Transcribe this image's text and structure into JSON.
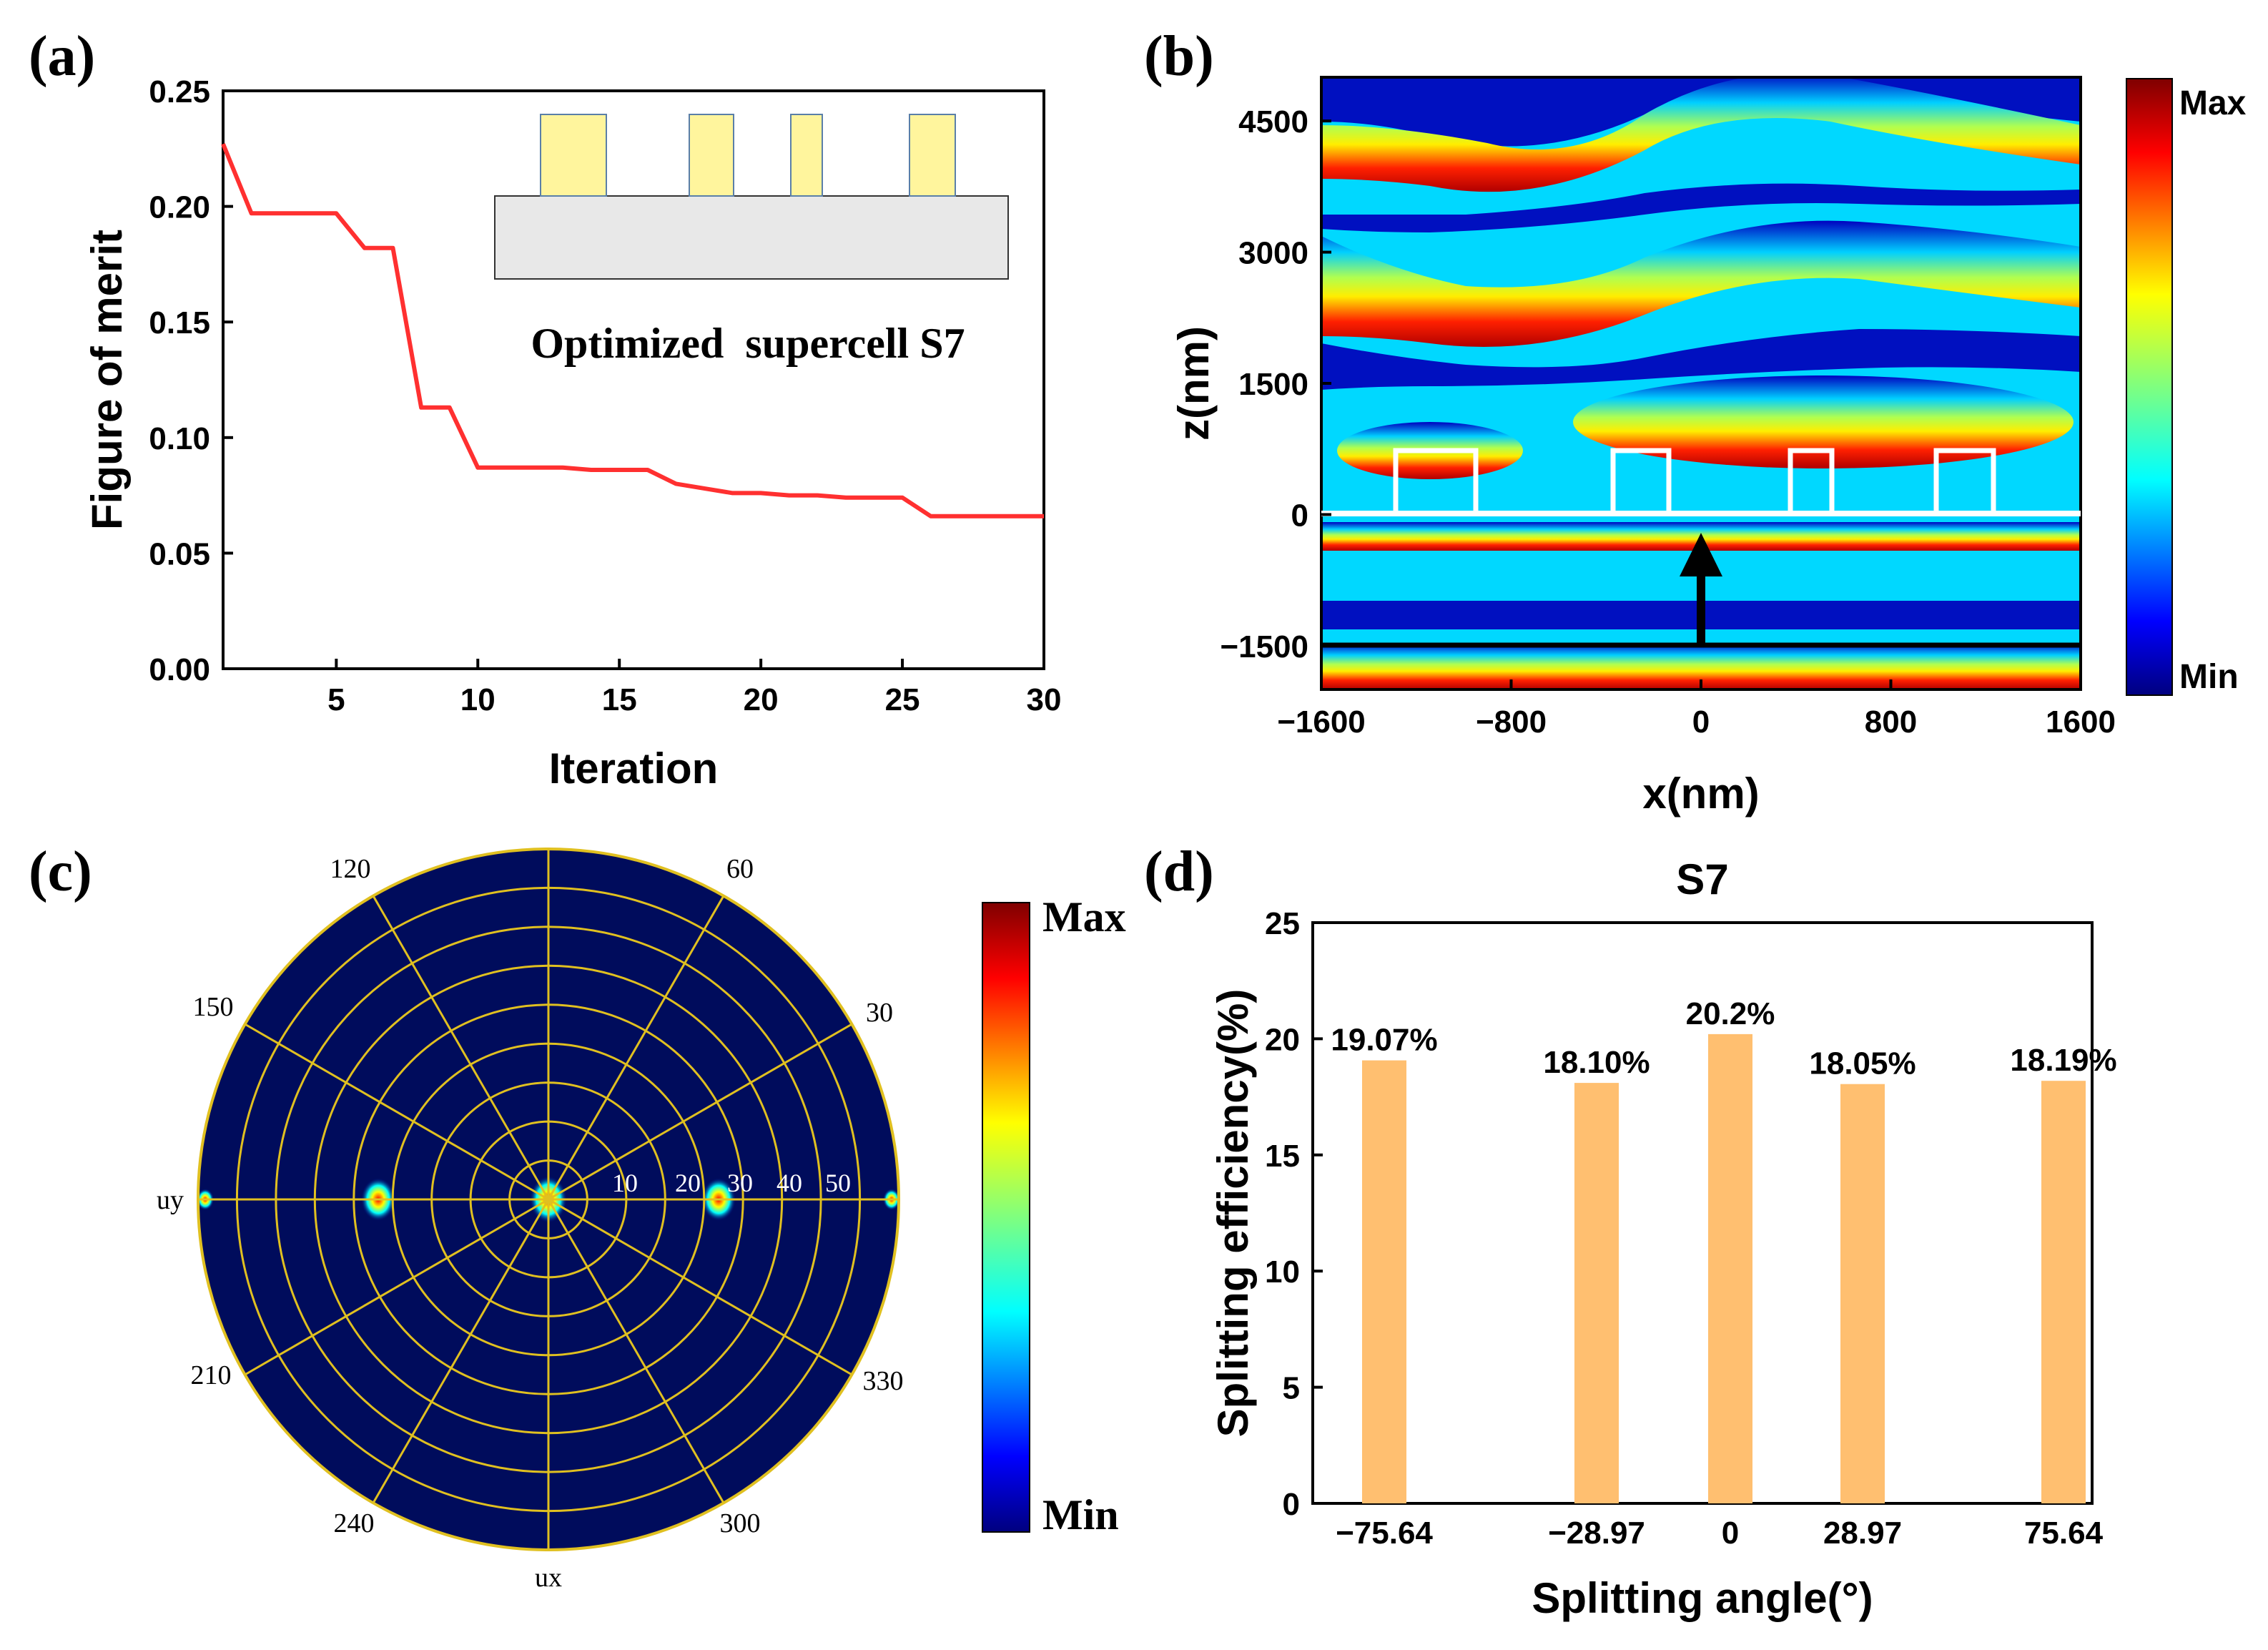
{
  "panels": {
    "a": "(a)",
    "b": "(b)",
    "c": "(c)",
    "d": "(d)"
  },
  "chart_data": [
    {
      "type": "line",
      "panel": "(a)",
      "xlabel": "Iteration",
      "ylabel": "Figure of merit",
      "xlim": [
        1,
        30
      ],
      "ylim": [
        0,
        0.25
      ],
      "xticks": [
        5,
        10,
        15,
        20,
        25,
        30
      ],
      "yticks": [
        "0.00",
        "0.05",
        "0.10",
        "0.15",
        "0.20",
        "0.25"
      ],
      "x": [
        1,
        2,
        3,
        4,
        5,
        6,
        7,
        8,
        9,
        10,
        11,
        12,
        13,
        14,
        15,
        16,
        17,
        18,
        19,
        20,
        21,
        22,
        23,
        24,
        25,
        26,
        27,
        28,
        29,
        30
      ],
      "y": [
        0.227,
        0.197,
        0.197,
        0.197,
        0.197,
        0.182,
        0.182,
        0.113,
        0.113,
        0.087,
        0.087,
        0.087,
        0.087,
        0.086,
        0.086,
        0.086,
        0.08,
        0.078,
        0.076,
        0.076,
        0.075,
        0.075,
        0.074,
        0.074,
        0.074,
        0.066,
        0.066,
        0.066,
        0.066,
        0.066
      ],
      "line_color": "#ff3030",
      "inset_text": "Optimized  supercell S7",
      "inset_pillar_color": "#fff59d",
      "inset_substrate_color": "#e8e8e8"
    },
    {
      "type": "heatmap",
      "panel": "(b)",
      "xlabel": "x(nm)",
      "ylabel": "z(nm)",
      "xlim": [
        -1600,
        1600
      ],
      "ylim": [
        -2000,
        5000
      ],
      "xticks": [
        "-1600",
        "-800",
        "0",
        "800",
        "1600"
      ],
      "yticks": [
        "-1500",
        "0",
        "1500",
        "3000",
        "4500"
      ],
      "colorbar": {
        "max": "Max",
        "min": "Min"
      }
    },
    {
      "type": "heatmap",
      "panel": "(c)",
      "angle_labels": [
        "60",
        "30",
        "120",
        "150",
        "210",
        "240",
        "300",
        "330"
      ],
      "ring_labels": [
        "10",
        "20",
        "30",
        "40",
        "50"
      ],
      "axis_labels": {
        "horizontal": "uy",
        "vertical": "ux"
      },
      "colorbar": {
        "max": "Max",
        "min": "Min"
      }
    },
    {
      "type": "bar",
      "panel": "(d)",
      "title": "S7",
      "xlabel": "Splitting angle(°)",
      "ylabel": "Splitting efficiency(%)",
      "categories": [
        "-75.64",
        "-28.97",
        "0",
        "28.97",
        "75.64"
      ],
      "x": [
        -75.64,
        -28.97,
        0,
        28.97,
        75.64
      ],
      "values": [
        19.07,
        18.1,
        20.2,
        18.05,
        18.19
      ],
      "value_labels": [
        "19.07%",
        "18.10%",
        "20.2%",
        "18.05%",
        "18.19%"
      ],
      "ylim": [
        0,
        25
      ],
      "yticks": [
        "0",
        "5",
        "10",
        "15",
        "20",
        "25"
      ],
      "bar_color": "#ffbf70"
    }
  ]
}
